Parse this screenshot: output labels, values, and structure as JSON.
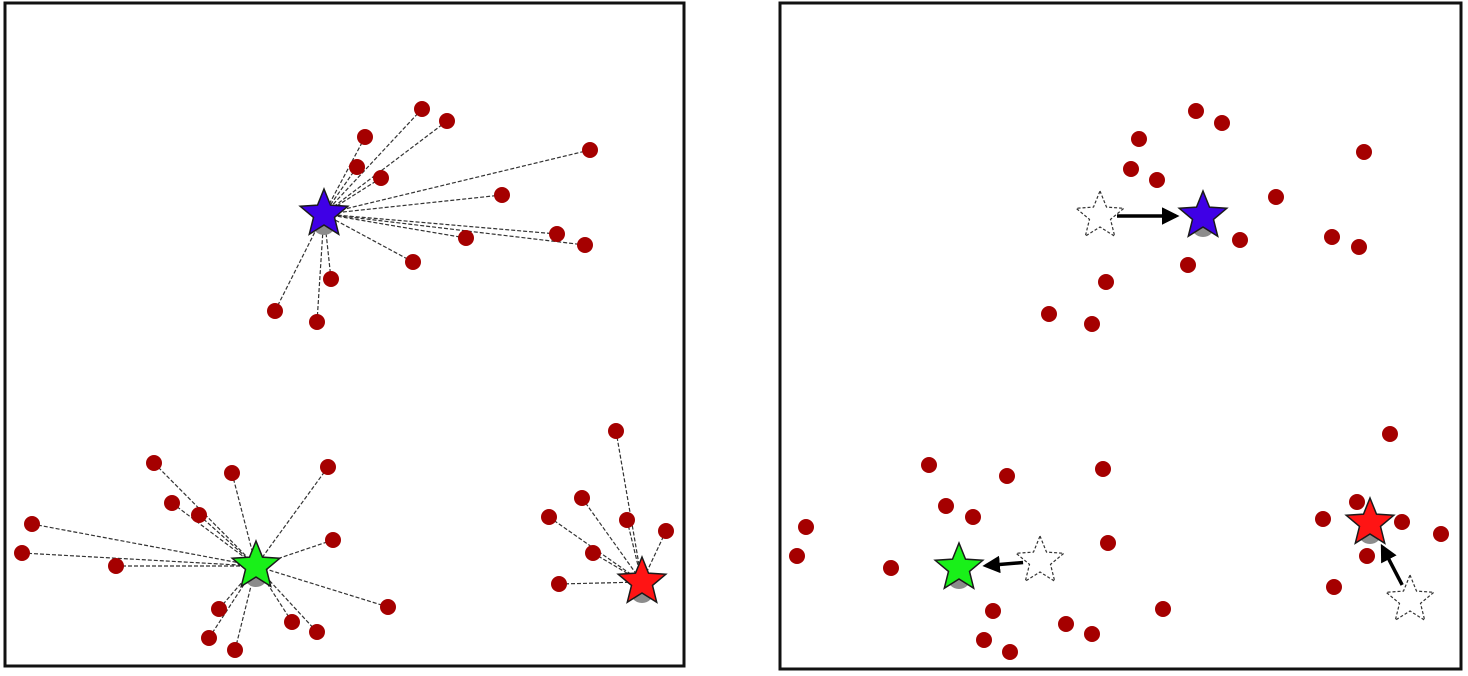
{
  "colors": {
    "point": "#a50000",
    "blue_centroid": "#3f00e6",
    "green_centroid": "#19f019",
    "red_centroid": "#ff1414",
    "link": "#333333",
    "frame": "#111111",
    "shadow": "#8c8c8c"
  },
  "icons": {
    "centroid": "star-icon",
    "previous_centroid": "dashed-star-outline-icon",
    "movement": "arrow-icon"
  },
  "panels": [
    {
      "id": "assignment",
      "clusters": [
        {
          "name": "blue",
          "centroid": [
            324,
            214
          ],
          "points": [
            [
              422,
              109
            ],
            [
              447,
              121
            ],
            [
              365,
              137
            ],
            [
              357,
              167
            ],
            [
              381,
              178
            ],
            [
              590,
              150
            ],
            [
              502,
              195
            ],
            [
              466,
              238
            ],
            [
              557,
              234
            ],
            [
              585,
              245
            ],
            [
              413,
              262
            ],
            [
              331,
              279
            ],
            [
              275,
              311
            ],
            [
              317,
              322
            ]
          ]
        },
        {
          "name": "green",
          "centroid": [
            256,
            566
          ],
          "points": [
            [
              154,
              463
            ],
            [
              232,
              473
            ],
            [
              328,
              467
            ],
            [
              172,
              503
            ],
            [
              199,
              515
            ],
            [
              32,
              524
            ],
            [
              22,
              553
            ],
            [
              116,
              566
            ],
            [
              333,
              540
            ],
            [
              219,
              609
            ],
            [
              209,
              638
            ],
            [
              235,
              650
            ],
            [
              292,
              622
            ],
            [
              317,
              632
            ],
            [
              388,
              607
            ]
          ]
        },
        {
          "name": "red",
          "centroid": [
            642,
            582
          ],
          "points": [
            [
              616,
              431
            ],
            [
              582,
              498
            ],
            [
              549,
              517
            ],
            [
              627,
              520
            ],
            [
              666,
              531
            ],
            [
              593,
              553
            ],
            [
              559,
              584
            ]
          ]
        }
      ]
    },
    {
      "id": "update",
      "points": [
        [
          1196,
          111
        ],
        [
          1222,
          123
        ],
        [
          1139,
          139
        ],
        [
          1131,
          169
        ],
        [
          1157,
          180
        ],
        [
          1364,
          152
        ],
        [
          1276,
          197
        ],
        [
          1240,
          240
        ],
        [
          1332,
          237
        ],
        [
          1359,
          247
        ],
        [
          1188,
          265
        ],
        [
          1106,
          282
        ],
        [
          1049,
          314
        ],
        [
          1092,
          324
        ],
        [
          1390,
          434
        ],
        [
          1357,
          502
        ],
        [
          1323,
          519
        ],
        [
          1402,
          522
        ],
        [
          1441,
          534
        ],
        [
          1367,
          556
        ],
        [
          1334,
          587
        ],
        [
          929,
          465
        ],
        [
          1007,
          476
        ],
        [
          1103,
          469
        ],
        [
          946,
          506
        ],
        [
          973,
          517
        ],
        [
          806,
          527
        ],
        [
          797,
          556
        ],
        [
          891,
          568
        ],
        [
          1108,
          543
        ],
        [
          993,
          611
        ],
        [
          984,
          640
        ],
        [
          1010,
          652
        ],
        [
          1066,
          624
        ],
        [
          1092,
          634
        ],
        [
          1163,
          609
        ]
      ],
      "moves": [
        {
          "name": "blue",
          "from": [
            1100,
            216
          ],
          "to": [
            1203,
            216
          ]
        },
        {
          "name": "green",
          "from": [
            1040,
            561
          ],
          "to": [
            959,
            568
          ]
        },
        {
          "name": "red",
          "from": [
            1410,
            600
          ],
          "to": [
            1370,
            523
          ]
        }
      ]
    }
  ]
}
